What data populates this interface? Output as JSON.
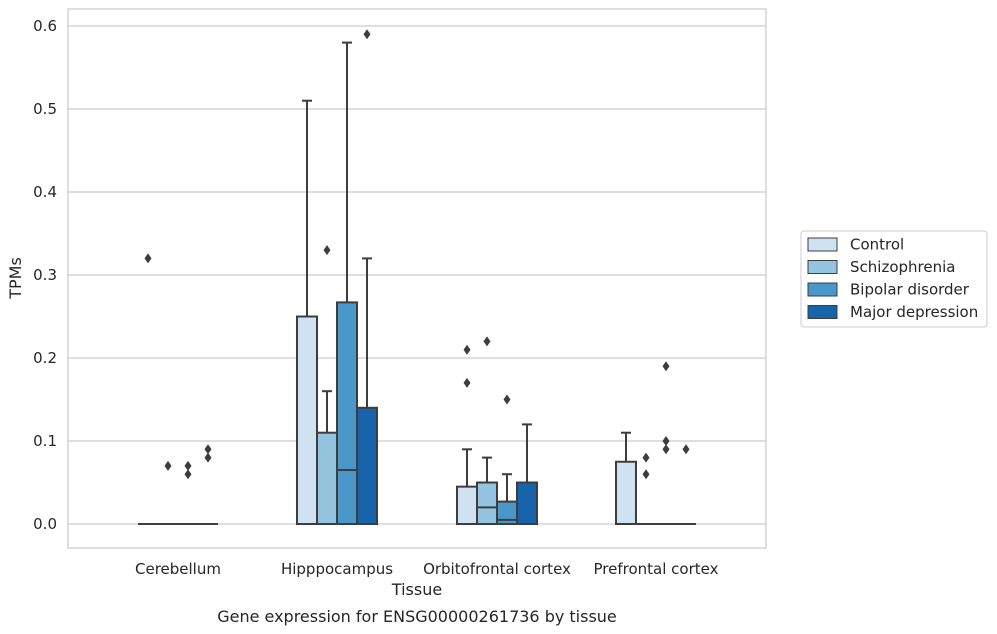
{
  "chart_data": {
    "type": "box",
    "caption": "Gene expression for ENSG00000261736 by tissue",
    "xlabel": "Tissue",
    "ylabel": "TPMs",
    "ylim": [
      -0.03,
      0.62
    ],
    "yticks": [
      "0.0",
      "0.1",
      "0.2",
      "0.3",
      "0.4",
      "0.5",
      "0.6"
    ],
    "grid": true,
    "legend_position": "right",
    "categories": [
      "Cerebellum",
      "Hipppocampus",
      "Orbitofrontal cortex",
      "Prefrontal cortex"
    ],
    "series": [
      {
        "name": "Control",
        "color": "#d0e1f2",
        "boxes": [
          {
            "q1": 0,
            "median": 0,
            "q3": 0,
            "whisker_low": 0,
            "whisker_high": 0,
            "outliers": [
              0.32
            ]
          },
          {
            "q1": 0,
            "median": 0,
            "q3": 0.25,
            "whisker_low": 0,
            "whisker_high": 0.51,
            "outliers": []
          },
          {
            "q1": 0,
            "median": 0,
            "q3": 0.045,
            "whisker_low": 0,
            "whisker_high": 0.09,
            "outliers": [
              0.17,
              0.21
            ]
          },
          {
            "q1": 0,
            "median": 0,
            "q3": 0.075,
            "whisker_low": 0,
            "whisker_high": 0.11,
            "outliers": []
          }
        ]
      },
      {
        "name": "Schizophrenia",
        "color": "#94c4df",
        "boxes": [
          {
            "q1": 0,
            "median": 0,
            "q3": 0,
            "whisker_low": 0,
            "whisker_high": 0,
            "outliers": [
              0.07
            ]
          },
          {
            "q1": 0,
            "median": 0,
            "q3": 0.11,
            "whisker_low": 0,
            "whisker_high": 0.16,
            "outliers": [
              0.33
            ]
          },
          {
            "q1": 0,
            "median": 0.02,
            "q3": 0.05,
            "whisker_low": 0,
            "whisker_high": 0.08,
            "outliers": [
              0.22
            ]
          },
          {
            "q1": 0,
            "median": 0,
            "q3": 0,
            "whisker_low": 0,
            "whisker_high": 0,
            "outliers": [
              0.06,
              0.08
            ]
          }
        ]
      },
      {
        "name": "Bipolar disorder",
        "color": "#4a98c9",
        "boxes": [
          {
            "q1": 0,
            "median": 0,
            "q3": 0,
            "whisker_low": 0,
            "whisker_high": 0,
            "outliers": [
              0.06,
              0.07
            ]
          },
          {
            "q1": 0,
            "median": 0.065,
            "q3": 0.267,
            "whisker_low": 0,
            "whisker_high": 0.58,
            "outliers": []
          },
          {
            "q1": 0,
            "median": 0.005,
            "q3": 0.027,
            "whisker_low": 0,
            "whisker_high": 0.06,
            "outliers": [
              0.15
            ]
          },
          {
            "q1": 0,
            "median": 0,
            "q3": 0,
            "whisker_low": 0,
            "whisker_high": 0,
            "outliers": [
              0.09,
              0.1,
              0.19
            ]
          }
        ]
      },
      {
        "name": "Major depression",
        "color": "#1764ab",
        "boxes": [
          {
            "q1": 0,
            "median": 0,
            "q3": 0,
            "whisker_low": 0,
            "whisker_high": 0,
            "outliers": [
              0.08,
              0.09
            ]
          },
          {
            "q1": 0,
            "median": 0,
            "q3": 0.14,
            "whisker_low": 0,
            "whisker_high": 0.32,
            "outliers": [
              0.59
            ]
          },
          {
            "q1": 0,
            "median": 0,
            "q3": 0.05,
            "whisker_low": 0,
            "whisker_high": 0.12,
            "outliers": []
          },
          {
            "q1": 0,
            "median": 0,
            "q3": 0,
            "whisker_low": 0,
            "whisker_high": 0,
            "outliers": [
              0.09
            ]
          }
        ]
      }
    ]
  }
}
